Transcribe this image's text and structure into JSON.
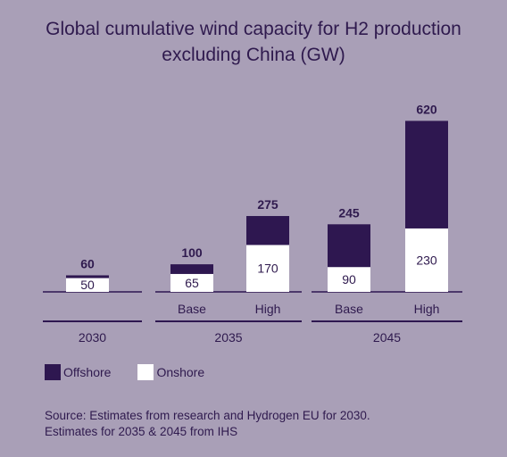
{
  "title_line1": "Global cumulative wind capacity for H2 production",
  "title_line2": "excluding China (GW)",
  "colors": {
    "offshore": "#2e1750",
    "onshore": "#ffffff",
    "background": "#a99fb7",
    "text": "#2f1a4e"
  },
  "legend": {
    "offshore": "Offshore",
    "onshore": "Onshore"
  },
  "source_line1": "Source: Estimates from research and Hydrogen EU for 2030.",
  "source_line2": "Estimates for 2035 & 2045 from IHS",
  "chart_data": {
    "type": "bar",
    "stacked": true,
    "groups": [
      {
        "label": "2030",
        "bars": [
          {
            "label": "",
            "onshore": 50,
            "offshore": 10,
            "total": 60
          }
        ]
      },
      {
        "label": "2035",
        "bars": [
          {
            "label": "Base",
            "onshore": 65,
            "offshore": 35,
            "total": 100
          },
          {
            "label": "High",
            "onshore": 170,
            "offshore": 105,
            "total": 275
          }
        ]
      },
      {
        "label": "2045",
        "bars": [
          {
            "label": "Base",
            "onshore": 90,
            "offshore": 155,
            "total": 245
          },
          {
            "label": "High",
            "onshore": 230,
            "offshore": 390,
            "total": 620
          }
        ]
      }
    ],
    "series": [
      {
        "name": "Offshore",
        "key": "offshore"
      },
      {
        "name": "Onshore",
        "key": "onshore"
      }
    ],
    "ylim": [
      0,
      620
    ],
    "grid": false,
    "legend_position": "bottom-left"
  }
}
